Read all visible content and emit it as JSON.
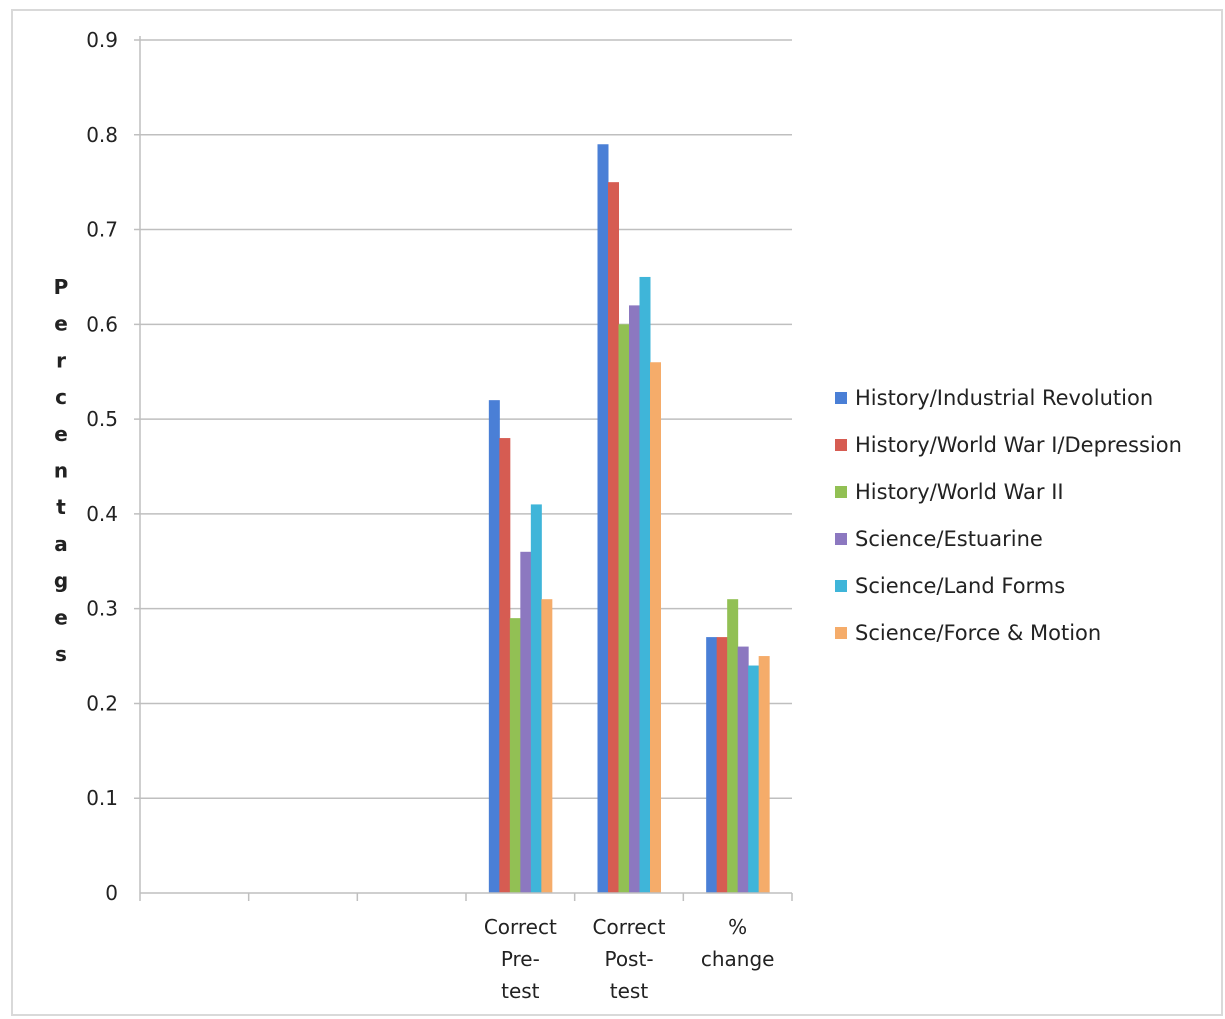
{
  "chart_data": {
    "type": "bar",
    "title": "",
    "xlabel": "",
    "ylabel": "Percentages",
    "ylim": [
      0,
      0.9
    ],
    "yticks": [
      "0",
      "0.1",
      "0.2",
      "0.3",
      "0.4",
      "0.5",
      "0.6",
      "0.7",
      "0.8",
      "0.9"
    ],
    "grid": true,
    "legend_position": "right",
    "categories": [
      "",
      "",
      "",
      [
        "Correct",
        "Pre-",
        "test"
      ],
      [
        "Correct",
        "Post-",
        "test"
      ],
      [
        "%",
        "change"
      ]
    ],
    "series": [
      {
        "name": "History/Industrial Revolution",
        "color": "#4a7fd6",
        "values": [
          null,
          null,
          null,
          0.52,
          0.79,
          0.27
        ]
      },
      {
        "name": "History/World War I/Depression",
        "color": "#d65c52",
        "values": [
          null,
          null,
          null,
          0.48,
          0.75,
          0.27
        ]
      },
      {
        "name": "History/World War II",
        "color": "#92c054",
        "values": [
          null,
          null,
          null,
          0.29,
          0.6,
          0.31
        ]
      },
      {
        "name": "Science/Estuarine",
        "color": "#8c78c0",
        "values": [
          null,
          null,
          null,
          0.36,
          0.62,
          0.26
        ]
      },
      {
        "name": "Science/Land Forms",
        "color": "#3fb5d9",
        "values": [
          null,
          null,
          null,
          0.41,
          0.65,
          0.24
        ]
      },
      {
        "name": "Science/Force & Motion",
        "color": "#f5ac6a",
        "values": [
          null,
          null,
          null,
          0.31,
          0.56,
          0.25
        ]
      }
    ]
  }
}
